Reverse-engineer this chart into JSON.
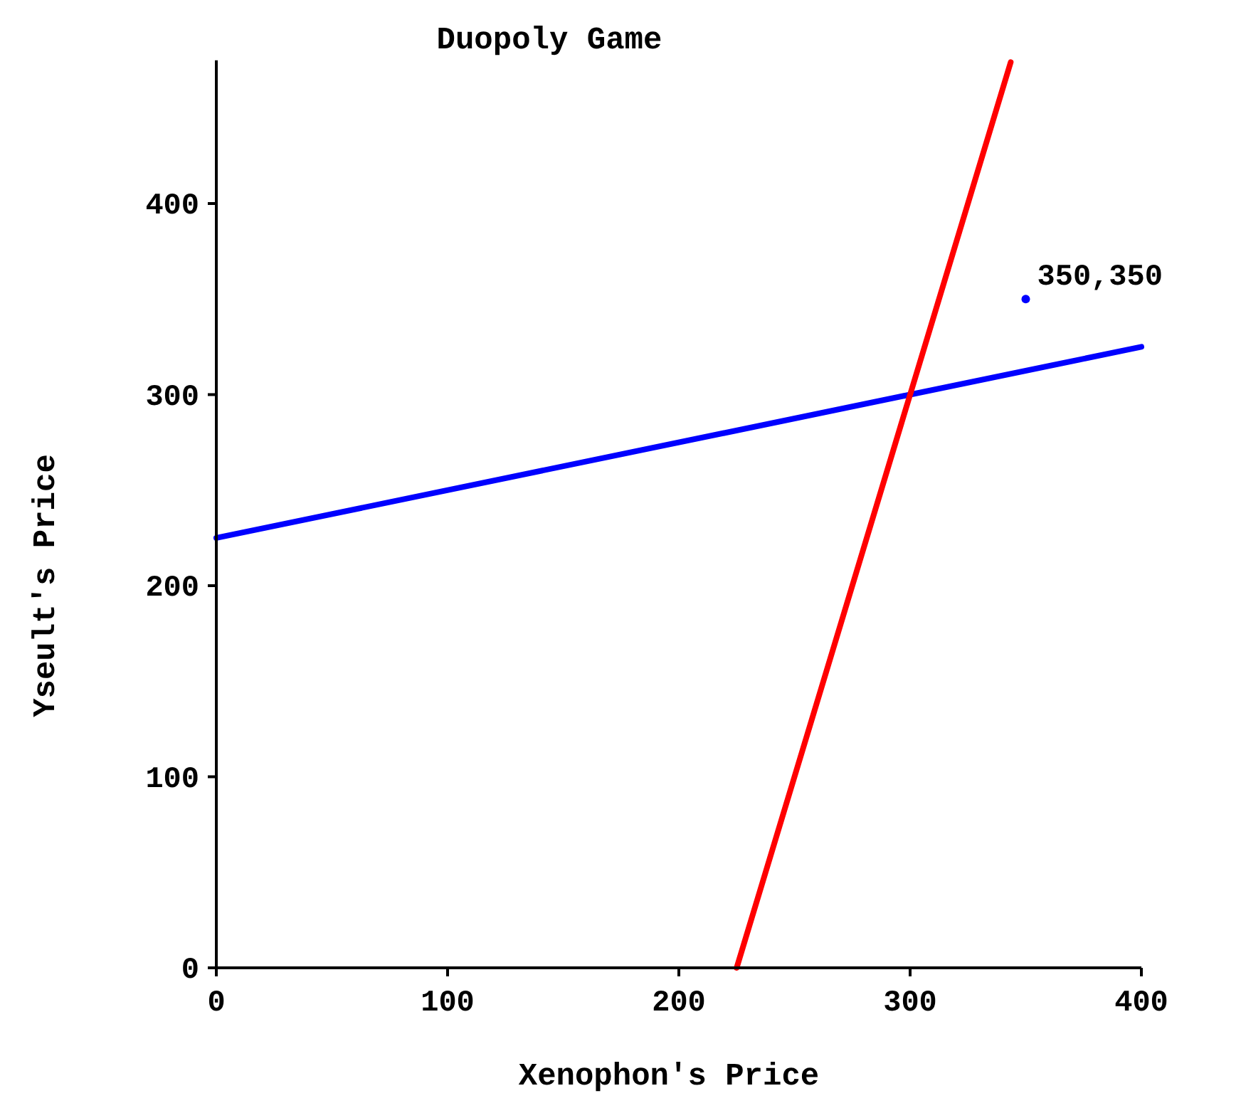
{
  "chart_data": {
    "type": "line",
    "title": "Duopoly Game",
    "xlabel": "Xenophon's Price",
    "ylabel": "Yseult's Price",
    "xlim": [
      0,
      400
    ],
    "xticks": [
      0,
      100,
      200,
      300,
      400
    ],
    "ylim": [
      0,
      475
    ],
    "yticks": [
      0,
      100,
      200,
      300,
      400
    ],
    "series": [
      {
        "color": "#0000ff",
        "x": [
          0,
          400
        ],
        "values": [
          225,
          325
        ]
      },
      {
        "color": "#ff0000",
        "x": [
          225,
          343.5
        ],
        "values": [
          0,
          474
        ]
      },
      {
        "type": "scatter",
        "marker": "circle",
        "color": "#0000ff",
        "x": [
          350
        ],
        "values": [
          350
        ]
      }
    ],
    "annotations": [
      {
        "text": "350,350",
        "x": 350,
        "y": 350
      }
    ],
    "grid": false,
    "line_style": "solid"
  }
}
